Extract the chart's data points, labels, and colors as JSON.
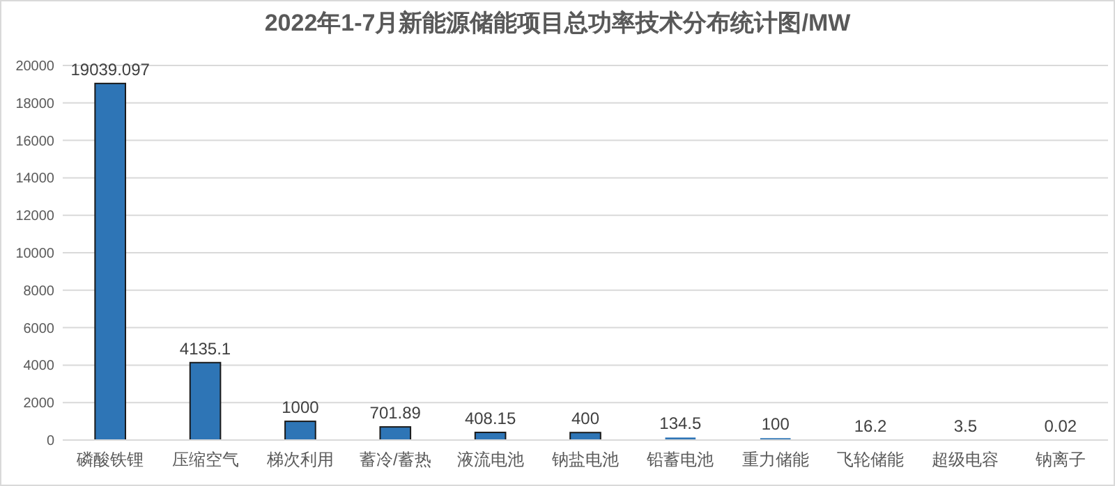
{
  "chart_data": {
    "type": "bar",
    "title": "2022年1-7月新能源储能项目总功率技术分布统计图/MW",
    "categories": [
      "磷酸铁锂",
      "压缩空气",
      "梯次利用",
      "蓄冷/蓄热",
      "液流电池",
      "钠盐电池",
      "铅蓄电池",
      "重力储能",
      "飞轮储能",
      "超级电容",
      "钠离子"
    ],
    "values": [
      19039.097,
      4135.1,
      1000,
      701.89,
      408.15,
      400,
      134.5,
      100,
      16.2,
      3.5,
      0.02
    ],
    "color": "#2e75b6",
    "ylim": [
      0,
      20000
    ],
    "yticks": [
      0,
      2000,
      4000,
      6000,
      8000,
      10000,
      12000,
      14000,
      16000,
      18000,
      20000
    ],
    "grid": "y",
    "data_labels": true
  }
}
